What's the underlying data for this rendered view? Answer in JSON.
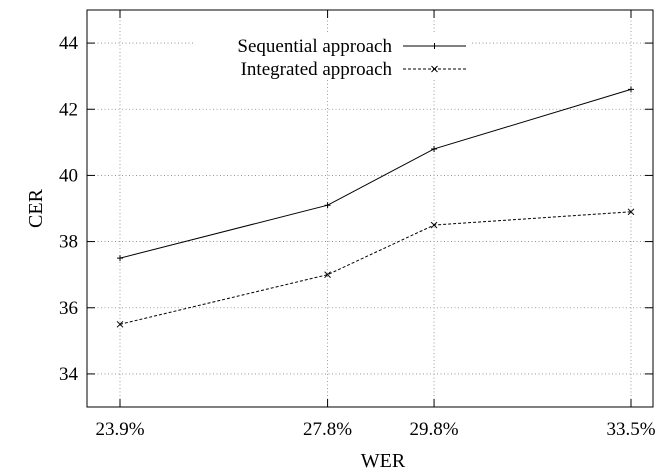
{
  "chart_data": {
    "type": "line",
    "title": "",
    "xlabel": "WER",
    "ylabel": "CER",
    "categories": [
      "23.9%",
      "27.8%",
      "29.8%",
      "33.5%"
    ],
    "x": [
      23.9,
      27.8,
      29.8,
      33.5
    ],
    "xlim": [
      23.9,
      33.5
    ],
    "ylim": [
      33,
      45
    ],
    "yticks": [
      34,
      36,
      38,
      40,
      42,
      44
    ],
    "grid": true,
    "legend_position": "top",
    "series": [
      {
        "name": "Sequential approach",
        "values": [
          37.5,
          39.1,
          40.8,
          42.6
        ],
        "line_style": "solid",
        "marker": "plus",
        "color": "#000000"
      },
      {
        "name": "Integrated approach",
        "values": [
          35.5,
          37.0,
          38.5,
          38.9
        ],
        "line_style": "dashed",
        "marker": "x",
        "color": "#000000"
      }
    ]
  }
}
